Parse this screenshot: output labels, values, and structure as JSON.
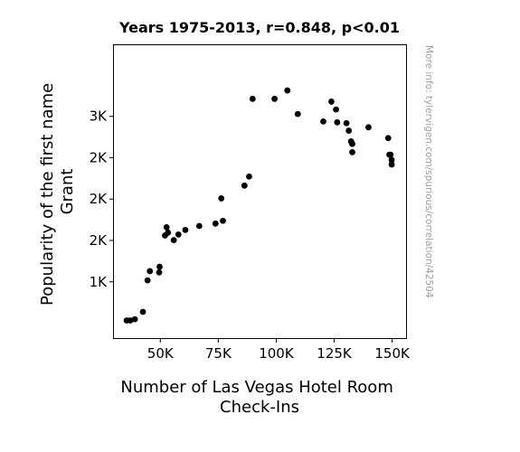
{
  "chart_data": {
    "type": "scatter",
    "title": "Years 1975-2013, r=0.848, p<0.01",
    "xlabel": [
      "Number of Las Vegas Hotel Room",
      "Check-Ins"
    ],
    "ylabel": [
      "Popularity of the first name",
      "Grant"
    ],
    "xlim": [
      30000,
      156000
    ],
    "ylim": [
      320,
      3860
    ],
    "x_ticks": [
      {
        "value": 50000,
        "label": "50K"
      },
      {
        "value": 75000,
        "label": "75K"
      },
      {
        "value": 100000,
        "label": "100K"
      },
      {
        "value": 125000,
        "label": "125K"
      },
      {
        "value": 150000,
        "label": "150K"
      }
    ],
    "y_ticks": [
      {
        "value": 1000,
        "label": "1K"
      },
      {
        "value": 1500,
        "label": "2K"
      },
      {
        "value": 2000,
        "label": "2K"
      },
      {
        "value": 2500,
        "label": "2K"
      },
      {
        "value": 3000,
        "label": "3K"
      }
    ],
    "grid": false,
    "legend": "none",
    "marker_color": "#000000",
    "points": [
      {
        "x": 35500,
        "y": 533
      },
      {
        "x": 37000,
        "y": 533
      },
      {
        "x": 39000,
        "y": 548
      },
      {
        "x": 42500,
        "y": 637
      },
      {
        "x": 44500,
        "y": 1018
      },
      {
        "x": 45500,
        "y": 1129
      },
      {
        "x": 49500,
        "y": 1114
      },
      {
        "x": 49700,
        "y": 1183
      },
      {
        "x": 52000,
        "y": 1560
      },
      {
        "x": 52700,
        "y": 1660
      },
      {
        "x": 53300,
        "y": 1595
      },
      {
        "x": 55800,
        "y": 1504
      },
      {
        "x": 57800,
        "y": 1572
      },
      {
        "x": 60800,
        "y": 1627
      },
      {
        "x": 66800,
        "y": 1675
      },
      {
        "x": 73800,
        "y": 1704
      },
      {
        "x": 76300,
        "y": 2009
      },
      {
        "x": 77000,
        "y": 1738
      },
      {
        "x": 86300,
        "y": 2163
      },
      {
        "x": 88300,
        "y": 2273
      },
      {
        "x": 89800,
        "y": 3212
      },
      {
        "x": 99300,
        "y": 3212
      },
      {
        "x": 104800,
        "y": 3313
      },
      {
        "x": 109300,
        "y": 3028
      },
      {
        "x": 120300,
        "y": 2938
      },
      {
        "x": 123800,
        "y": 3178
      },
      {
        "x": 125800,
        "y": 3083
      },
      {
        "x": 126300,
        "y": 2928
      },
      {
        "x": 130300,
        "y": 2918
      },
      {
        "x": 131300,
        "y": 2827
      },
      {
        "x": 132300,
        "y": 2697
      },
      {
        "x": 132800,
        "y": 2667
      },
      {
        "x": 132800,
        "y": 2567
      },
      {
        "x": 139800,
        "y": 2868
      },
      {
        "x": 148300,
        "y": 2737
      },
      {
        "x": 148800,
        "y": 2537
      },
      {
        "x": 149300,
        "y": 2537
      },
      {
        "x": 149800,
        "y": 2473
      },
      {
        "x": 149800,
        "y": 2418
      }
    ]
  },
  "watermark": "More info: tylervigen.com/spurious/correlation/42504"
}
